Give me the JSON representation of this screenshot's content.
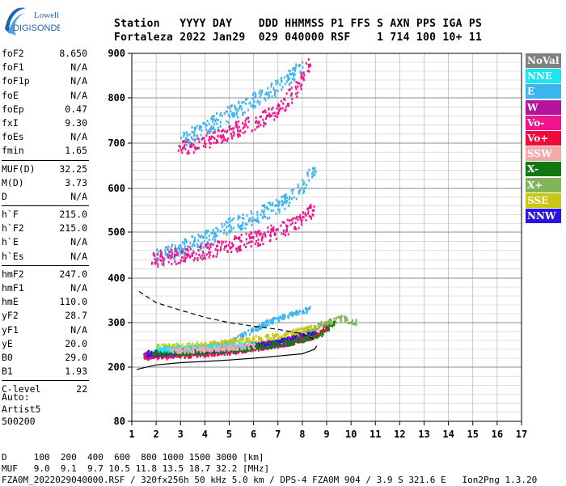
{
  "logo": {
    "line1": "Lowell",
    "line2": "DIGISONDE"
  },
  "header": {
    "labels": [
      "Station",
      "YYYY",
      "DAY",
      "DDD",
      "HHMMSS",
      "P1",
      "FFS",
      "S",
      "AXN",
      "PPS",
      "IGA",
      "PS"
    ],
    "values": [
      "Fortaleza",
      "2022",
      "Jan29",
      "029",
      "040000",
      "RSF",
      "",
      "1",
      "714",
      "100",
      "10+",
      "11"
    ]
  },
  "params": [
    [
      [
        "foF2",
        "8.650"
      ],
      [
        "foF1",
        "N/A"
      ],
      [
        "foF1p",
        "N/A"
      ],
      [
        "foE",
        "N/A"
      ],
      [
        "foEp",
        "0.47"
      ],
      [
        "fxI",
        "9.30"
      ],
      [
        "foEs",
        "N/A"
      ],
      [
        "fmin",
        "1.65"
      ]
    ],
    [
      [
        "MUF(D)",
        "32.25"
      ],
      [
        "M(D)",
        "3.73"
      ],
      [
        "D",
        "N/A"
      ]
    ],
    [
      [
        "h`F",
        "215.0"
      ],
      [
        "h`F2",
        "215.0"
      ],
      [
        "h`E",
        "N/A"
      ],
      [
        "h`Es",
        "N/A"
      ]
    ],
    [
      [
        "hmF2",
        "247.0"
      ],
      [
        "hmF1",
        "N/A"
      ],
      [
        "hmE",
        "110.0"
      ],
      [
        "yF2",
        "28.7"
      ],
      [
        "yF1",
        "N/A"
      ],
      [
        "yE",
        "20.0"
      ],
      [
        "B0",
        "29.0"
      ],
      [
        "B1",
        "1.93"
      ]
    ],
    [
      [
        "C-level",
        "22"
      ]
    ]
  ],
  "auto": [
    "Auto:",
    "Artist5",
    "500200"
  ],
  "footer": {
    "d_line": "D     100  200  400  600  800 1000 1500 3000 [km]",
    "muf_line": "MUF   9.0  9.1  9.7 10.5 11.8 13.5 18.7 32.2 [MHz]",
    "file_line": "FZA0M_2022029040000.RSF / 320fx256h 50 kHz 5.0 km / DPS-4 FZA0M 904 / 3.9 S 321.6 E   Ion2Png 1.3.20"
  },
  "legend": [
    {
      "label": "NoVal",
      "color": "#808080"
    },
    {
      "label": "NNE",
      "color": "#19e6f0"
    },
    {
      "label": "E",
      "color": "#3cb4f0"
    },
    {
      "label": "W",
      "color": "#b4149b"
    },
    {
      "label": "Vo-",
      "color": "#f0148c"
    },
    {
      "label": "Vo+",
      "color": "#f00a3c"
    },
    {
      "label": "SSW",
      "color": "#f0aaaa"
    },
    {
      "label": "X-",
      "color": "#0f780f"
    },
    {
      "label": "X+",
      "color": "#82b45a"
    },
    {
      "label": "SSE",
      "color": "#c8c814"
    },
    {
      "label": "NNW",
      "color": "#2814dc"
    }
  ],
  "chart_data": {
    "type": "scatter",
    "title": "",
    "xlabel": "",
    "ylabel": "",
    "xlim": [
      1,
      17
    ],
    "ylim": [
      80,
      900
    ],
    "x_ticks": [
      1,
      2,
      3,
      4,
      5,
      6,
      7,
      8,
      9,
      10,
      11,
      12,
      13,
      14,
      15,
      16,
      17
    ],
    "y_ticks": [
      80,
      200,
      300,
      400,
      500,
      600,
      700,
      800,
      900
    ],
    "y_scale": "log-like (ionogram virtual height)",
    "grid": true,
    "series": [
      {
        "name": "E",
        "color": "#3cb4f0",
        "trace": [
          [
            1.5,
            228
          ],
          [
            3,
            235
          ],
          [
            5,
            255
          ],
          [
            6.5,
            300
          ],
          [
            7.5,
            318
          ],
          [
            8.3,
            330
          ]
        ]
      },
      {
        "name": "Vo+",
        "color": "#f00a3c",
        "trace": [
          [
            1.5,
            222
          ],
          [
            3,
            226
          ],
          [
            5,
            235
          ],
          [
            7,
            250
          ],
          [
            8.5,
            270
          ],
          [
            9.2,
            300
          ]
        ]
      },
      {
        "name": "Vo-",
        "color": "#f0148c",
        "trace": [
          [
            1.5,
            225
          ],
          [
            3,
            229
          ],
          [
            5,
            238
          ],
          [
            7,
            255
          ],
          [
            8.5,
            280
          ]
        ]
      },
      {
        "name": "W",
        "color": "#b4149b",
        "trace": [
          [
            1.5,
            227
          ],
          [
            3,
            231
          ],
          [
            4.5,
            236
          ],
          [
            6,
            243
          ],
          [
            7.5,
            255
          ],
          [
            8.3,
            267
          ]
        ]
      },
      {
        "name": "NNW",
        "color": "#2814dc",
        "trace": [
          [
            1.6,
            230
          ],
          [
            2.5,
            234
          ],
          [
            4,
            238
          ],
          [
            5.5,
            245
          ],
          [
            7,
            258
          ],
          [
            8.5,
            280
          ]
        ]
      },
      {
        "name": "X-",
        "color": "#0f780f",
        "trace": [
          [
            1.8,
            231
          ],
          [
            3.5,
            233
          ],
          [
            5.5,
            240
          ],
          [
            7.5,
            255
          ],
          [
            8.8,
            275
          ],
          [
            9.3,
            300
          ]
        ]
      },
      {
        "name": "X+",
        "color": "#82b45a",
        "trace": [
          [
            8,
            280
          ],
          [
            9,
            300
          ],
          [
            9.6,
            310
          ],
          [
            10.2,
            300
          ]
        ]
      },
      {
        "name": "SSE",
        "color": "#c8c814",
        "trace": [
          [
            2,
            245
          ],
          [
            4,
            250
          ],
          [
            7,
            270
          ],
          [
            8.5,
            290
          ]
        ]
      },
      {
        "name": "NNE",
        "color": "#19e6f0",
        "trace": [
          [
            2,
            240
          ],
          [
            4,
            243
          ],
          [
            6,
            250
          ]
        ]
      },
      {
        "name": "SSW",
        "color": "#f0aaaa",
        "trace": [
          [
            2.5,
            236
          ],
          [
            4,
            240
          ],
          [
            6,
            248
          ]
        ]
      },
      {
        "name": "2nd hop E",
        "color": "#3cb4f0",
        "trace": [
          [
            2,
            440
          ],
          [
            3,
            460
          ],
          [
            4,
            480
          ],
          [
            5,
            510
          ],
          [
            6,
            530
          ],
          [
            7,
            555
          ],
          [
            8,
            600
          ],
          [
            8.5,
            640
          ]
        ]
      },
      {
        "name": "2nd hop Vo",
        "color": "#f0148c",
        "trace": [
          [
            1.8,
            435
          ],
          [
            3,
            445
          ],
          [
            4.5,
            460
          ],
          [
            6,
            480
          ],
          [
            7.5,
            510
          ],
          [
            8.5,
            550
          ]
        ]
      },
      {
        "name": "3rd hop",
        "color": "#f0148c",
        "trace": [
          [
            2.9,
            680
          ],
          [
            4,
            700
          ],
          [
            5,
            720
          ],
          [
            6,
            740
          ],
          [
            7,
            770
          ],
          [
            7.8,
            820
          ],
          [
            8.3,
            880
          ]
        ]
      },
      {
        "name": "3rd hop E",
        "color": "#3cb4f0",
        "trace": [
          [
            3,
            700
          ],
          [
            4,
            730
          ],
          [
            5,
            760
          ],
          [
            6,
            790
          ],
          [
            7,
            820
          ],
          [
            8,
            870
          ]
        ]
      }
    ],
    "profile_curve": [
      [
        1.2,
        195
      ],
      [
        2,
        205
      ],
      [
        3,
        210
      ],
      [
        4,
        213
      ],
      [
        5,
        216
      ],
      [
        6,
        220
      ],
      [
        7,
        225
      ],
      [
        8,
        230
      ],
      [
        8.5,
        240
      ],
      [
        8.6,
        248
      ]
    ],
    "profile_dashed": [
      [
        1.3,
        370
      ],
      [
        2,
        345
      ],
      [
        3,
        328
      ],
      [
        4,
        312
      ],
      [
        5,
        300
      ],
      [
        6,
        292
      ],
      [
        7,
        285
      ],
      [
        8,
        275
      ],
      [
        8.5,
        262
      ]
    ]
  }
}
